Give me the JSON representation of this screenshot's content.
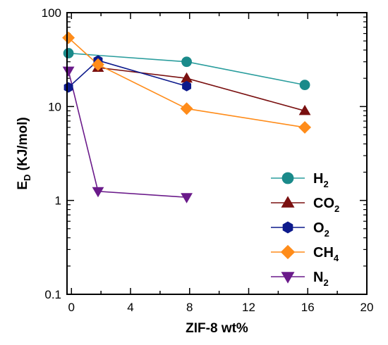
{
  "chart_data": {
    "type": "line",
    "xlabel": {
      "main": "ZIF-8 wt%"
    },
    "ylabel": {
      "main": "E",
      "sub": "D",
      "rest": " (KJ/mol)"
    },
    "xlim": [
      -0.3,
      20
    ],
    "ylim": [
      0.1,
      100
    ],
    "yscale": "log",
    "x_ticks": [
      0,
      4,
      8,
      12,
      16,
      20
    ],
    "x_tick_labels": [
      "0",
      "4",
      "8",
      "12",
      "16",
      "20"
    ],
    "y_ticks": [
      0.1,
      1,
      10,
      100
    ],
    "y_tick_labels": [
      "0.1",
      "1",
      "10",
      "100"
    ],
    "legend_position": "bottom-right",
    "series": [
      {
        "label_main": "H",
        "label_sub": "2",
        "color": "#1a8a8a",
        "line_color": "#2a9d9d",
        "marker": "circle",
        "x": [
          -0.2,
          7.8,
          15.8
        ],
        "y": [
          37,
          30,
          17
        ]
      },
      {
        "label_main": "CO",
        "label_sub": "2",
        "color": "#7a1010",
        "line_color": "#7a1010",
        "marker": "triangle-up",
        "x": [
          1.8,
          7.8,
          15.8
        ],
        "y": [
          26,
          20,
          9
        ]
      },
      {
        "label_main": "O",
        "label_sub": "2",
        "color": "#0d1a8c",
        "line_color": "#0d1a8c",
        "marker": "hexagon",
        "x": [
          -0.2,
          1.8,
          7.8
        ],
        "y": [
          16,
          31,
          16.5
        ]
      },
      {
        "label_main": "CH",
        "label_sub": "4",
        "color": "#ff8c1a",
        "line_color": "#ff8c1a",
        "marker": "diamond",
        "x": [
          -0.2,
          1.8,
          7.8,
          15.8
        ],
        "y": [
          54,
          28,
          9.5,
          6
        ]
      },
      {
        "label_main": "N",
        "label_sub": "2",
        "color": "#6a1a8a",
        "line_color": "#6a1a8a",
        "marker": "triangle-down",
        "x": [
          -0.2,
          1.8,
          7.8
        ],
        "y": [
          24,
          1.25,
          1.08
        ]
      }
    ]
  }
}
